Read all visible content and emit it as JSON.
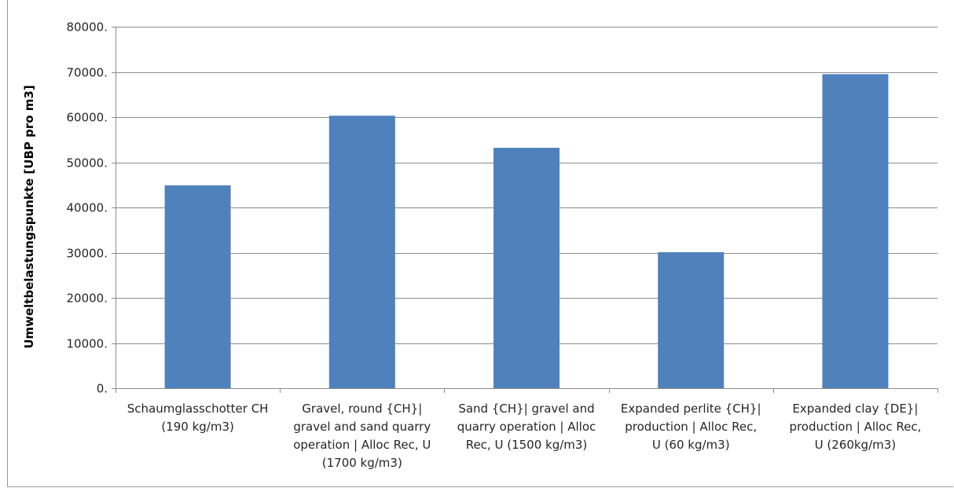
{
  "chart_data": {
    "type": "bar",
    "title": "",
    "xlabel": "",
    "ylabel": "Umweltbelastungspunkte [UBP pro  m3]",
    "ylim": [
      0,
      80000
    ],
    "yticks": [
      "0.",
      "10000.",
      "20000.",
      "30000.",
      "40000.",
      "50000.",
      "60000.",
      "70000.",
      "80000."
    ],
    "grid": true,
    "legend": "none",
    "bar_color": "#4f81bd",
    "categories": [
      [
        "Schaumglasschotter CH",
        "(190 kg/m3)"
      ],
      [
        "Gravel, round {CH}|",
        "gravel and sand quarry",
        "operation | Alloc Rec, U",
        "(1700 kg/m3)"
      ],
      [
        "Sand {CH}| gravel and",
        "quarry operation | Alloc",
        "Rec, U (1500 kg/m3)"
      ],
      [
        "Expanded perlite {CH}|",
        "production | Alloc Rec,",
        "U (60 kg/m3)"
      ],
      [
        "Expanded clay {DE}|",
        "production | Alloc Rec,",
        "U (260kg/m3)"
      ]
    ],
    "values": [
      44900,
      60300,
      53200,
      30100,
      69500
    ]
  }
}
